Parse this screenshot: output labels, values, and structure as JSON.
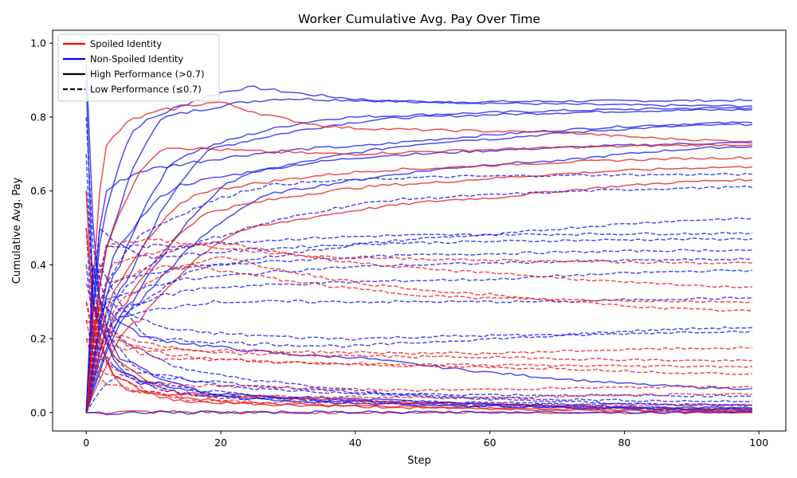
{
  "chart_data": {
    "type": "line",
    "title": "Worker Cumulative Avg. Pay Over Time",
    "xlabel": "Step",
    "ylabel": "Cumulative Avg. Pay",
    "xlim": [
      -5,
      104
    ],
    "ylim": [
      -0.05,
      1.035
    ],
    "xticks": [
      0,
      20,
      40,
      60,
      80,
      100
    ],
    "yticks": [
      0.0,
      0.2,
      0.4,
      0.6,
      0.8,
      1.0
    ],
    "grid": false,
    "legend": {
      "placement": "top-left",
      "entries": [
        {
          "label": "Spoiled Identity",
          "color": "#ff0000",
          "style": "solid"
        },
        {
          "label": "Non-Spoiled Identity",
          "color": "#0000ff",
          "style": "solid"
        },
        {
          "label": "High Performance (>0.7)",
          "color": "#000000",
          "style": "solid"
        },
        {
          "label": "Low Performance (≤0.7)",
          "color": "#000000",
          "style": "dashed"
        }
      ]
    },
    "colors": {
      "spoiled": "#ee1111",
      "nonspoiled": "#1111ee"
    },
    "x_end": 99,
    "series": [
      {
        "group": "nonspoiled",
        "perf": "high",
        "points": [
          [
            0,
            0
          ],
          [
            3,
            0.55
          ],
          [
            8,
            0.78
          ],
          [
            25,
            0.88
          ],
          [
            50,
            0.84
          ],
          [
            99,
            0.845
          ]
        ]
      },
      {
        "group": "nonspoiled",
        "perf": "high",
        "points": [
          [
            0,
            0
          ],
          [
            4,
            0.5
          ],
          [
            12,
            0.8
          ],
          [
            30,
            0.85
          ],
          [
            99,
            0.83
          ]
        ]
      },
      {
        "group": "nonspoiled",
        "perf": "high",
        "points": [
          [
            0,
            0
          ],
          [
            5,
            0.4
          ],
          [
            15,
            0.7
          ],
          [
            40,
            0.8
          ],
          [
            99,
            0.825
          ]
        ]
      },
      {
        "group": "nonspoiled",
        "perf": "high",
        "points": [
          [
            0,
            0
          ],
          [
            6,
            0.35
          ],
          [
            20,
            0.72
          ],
          [
            50,
            0.8
          ],
          [
            99,
            0.82
          ]
        ]
      },
      {
        "group": "nonspoiled",
        "perf": "high",
        "points": [
          [
            0,
            0
          ],
          [
            3,
            0.6
          ],
          [
            10,
            0.66
          ],
          [
            40,
            0.72
          ],
          [
            99,
            0.785
          ]
        ]
      },
      {
        "group": "nonspoiled",
        "perf": "high",
        "points": [
          [
            0,
            0
          ],
          [
            7,
            0.3
          ],
          [
            25,
            0.65
          ],
          [
            60,
            0.74
          ],
          [
            99,
            0.78
          ]
        ]
      },
      {
        "group": "nonspoiled",
        "perf": "high",
        "points": [
          [
            0,
            0
          ],
          [
            5,
            0.45
          ],
          [
            15,
            0.62
          ],
          [
            50,
            0.7
          ],
          [
            99,
            0.73
          ]
        ]
      },
      {
        "group": "nonspoiled",
        "perf": "high",
        "points": [
          [
            0,
            0
          ],
          [
            8,
            0.3
          ],
          [
            30,
            0.6
          ],
          [
            70,
            0.68
          ],
          [
            99,
            0.72
          ]
        ]
      },
      {
        "group": "nonspoiled",
        "perf": "high",
        "points": [
          [
            0,
            0.95
          ],
          [
            2,
            0.3
          ],
          [
            10,
            0.2
          ],
          [
            40,
            0.15
          ],
          [
            99,
            0.065
          ]
        ]
      },
      {
        "group": "spoiled",
        "perf": "high",
        "points": [
          [
            0,
            0
          ],
          [
            3,
            0.72
          ],
          [
            8,
            0.8
          ],
          [
            20,
            0.84
          ],
          [
            40,
            0.77
          ],
          [
            70,
            0.76
          ],
          [
            99,
            0.735
          ]
        ]
      },
      {
        "group": "spoiled",
        "perf": "high",
        "points": [
          [
            0,
            0
          ],
          [
            4,
            0.5
          ],
          [
            12,
            0.72
          ],
          [
            40,
            0.7
          ],
          [
            99,
            0.725
          ]
        ]
      },
      {
        "group": "spoiled",
        "perf": "high",
        "points": [
          [
            0,
            0
          ],
          [
            5,
            0.35
          ],
          [
            18,
            0.6
          ],
          [
            50,
            0.66
          ],
          [
            99,
            0.69
          ]
        ]
      },
      {
        "group": "spoiled",
        "perf": "high",
        "points": [
          [
            0,
            0
          ],
          [
            6,
            0.3
          ],
          [
            20,
            0.55
          ],
          [
            50,
            0.62
          ],
          [
            99,
            0.665
          ]
        ]
      },
      {
        "group": "spoiled",
        "perf": "high",
        "points": [
          [
            0,
            0
          ],
          [
            8,
            0.25
          ],
          [
            25,
            0.5
          ],
          [
            60,
            0.58
          ],
          [
            99,
            0.63
          ]
        ]
      },
      {
        "group": "nonspoiled",
        "perf": "low",
        "points": [
          [
            0,
            0
          ],
          [
            3,
            0.35
          ],
          [
            10,
            0.5
          ],
          [
            30,
            0.62
          ],
          [
            60,
            0.64
          ],
          [
            99,
            0.645
          ]
        ]
      },
      {
        "group": "nonspoiled",
        "perf": "low",
        "points": [
          [
            0,
            0
          ],
          [
            4,
            0.3
          ],
          [
            15,
            0.45
          ],
          [
            50,
            0.58
          ],
          [
            99,
            0.61
          ]
        ]
      },
      {
        "group": "nonspoiled",
        "perf": "low",
        "points": [
          [
            0,
            0
          ],
          [
            5,
            0.25
          ],
          [
            20,
            0.4
          ],
          [
            60,
            0.48
          ],
          [
            99,
            0.525
          ]
        ]
      },
      {
        "group": "nonspoiled",
        "perf": "low",
        "points": [
          [
            0,
            0
          ],
          [
            3,
            0.45
          ],
          [
            12,
            0.45
          ],
          [
            50,
            0.48
          ],
          [
            99,
            0.485
          ]
        ]
      },
      {
        "group": "nonspoiled",
        "perf": "low",
        "points": [
          [
            0,
            0
          ],
          [
            2,
            0.5
          ],
          [
            10,
            0.42
          ],
          [
            50,
            0.46
          ],
          [
            99,
            0.47
          ]
        ]
      },
      {
        "group": "nonspoiled",
        "perf": "low",
        "points": [
          [
            0,
            0
          ],
          [
            4,
            0.35
          ],
          [
            20,
            0.4
          ],
          [
            60,
            0.43
          ],
          [
            99,
            0.44
          ]
        ]
      },
      {
        "group": "nonspoiled",
        "perf": "low",
        "points": [
          [
            0,
            0
          ],
          [
            3,
            0.3
          ],
          [
            15,
            0.36
          ],
          [
            50,
            0.4
          ],
          [
            99,
            0.415
          ]
        ]
      },
      {
        "group": "nonspoiled",
        "perf": "low",
        "points": [
          [
            0,
            0
          ],
          [
            5,
            0.28
          ],
          [
            20,
            0.34
          ],
          [
            60,
            0.36
          ],
          [
            99,
            0.385
          ]
        ]
      },
      {
        "group": "nonspoiled",
        "perf": "low",
        "points": [
          [
            0,
            0
          ],
          [
            4,
            0.25
          ],
          [
            20,
            0.3
          ],
          [
            70,
            0.3
          ],
          [
            99,
            0.31
          ]
        ]
      },
      {
        "group": "nonspoiled",
        "perf": "low",
        "points": [
          [
            0,
            0
          ],
          [
            3,
            0.3
          ],
          [
            15,
            0.22
          ],
          [
            40,
            0.2
          ],
          [
            70,
            0.21
          ],
          [
            99,
            0.23
          ]
        ]
      },
      {
        "group": "nonspoiled",
        "perf": "low",
        "points": [
          [
            0,
            0
          ],
          [
            2,
            0.4
          ],
          [
            10,
            0.2
          ],
          [
            40,
            0.18
          ],
          [
            99,
            0.22
          ]
        ]
      },
      {
        "group": "nonspoiled",
        "perf": "low",
        "points": [
          [
            0,
            0.8
          ],
          [
            1,
            0.45
          ],
          [
            5,
            0.2
          ],
          [
            20,
            0.1
          ],
          [
            60,
            0.04
          ],
          [
            99,
            0.03
          ]
        ]
      },
      {
        "group": "nonspoiled",
        "perf": "low",
        "points": [
          [
            0,
            0.7
          ],
          [
            1,
            0.3
          ],
          [
            6,
            0.12
          ],
          [
            30,
            0.06
          ],
          [
            99,
            0.02
          ]
        ]
      },
      {
        "group": "nonspoiled",
        "perf": "low",
        "points": [
          [
            0,
            0.5
          ],
          [
            1,
            0.2
          ],
          [
            8,
            0.08
          ],
          [
            40,
            0.03
          ],
          [
            99,
            0.01
          ]
        ]
      },
      {
        "group": "nonspoiled",
        "perf": "low",
        "points": [
          [
            0,
            0.6
          ],
          [
            2,
            0.25
          ],
          [
            10,
            0.1
          ],
          [
            50,
            0.05
          ],
          [
            99,
            0.045
          ]
        ]
      },
      {
        "group": "nonspoiled",
        "perf": "low",
        "points": [
          [
            0,
            0.4
          ],
          [
            2,
            0.15
          ],
          [
            15,
            0.05
          ],
          [
            99,
            0.005
          ]
        ]
      },
      {
        "group": "nonspoiled",
        "perf": "low",
        "points": [
          [
            0,
            0
          ],
          [
            5,
            0.1
          ],
          [
            20,
            0.04
          ],
          [
            99,
            0.02
          ]
        ]
      },
      {
        "group": "spoiled",
        "perf": "low",
        "points": [
          [
            0,
            0
          ],
          [
            3,
            0.45
          ],
          [
            10,
            0.47
          ],
          [
            40,
            0.42
          ],
          [
            99,
            0.405
          ]
        ]
      },
      {
        "group": "spoiled",
        "perf": "low",
        "points": [
          [
            0,
            0
          ],
          [
            4,
            0.4
          ],
          [
            20,
            0.46
          ],
          [
            60,
            0.38
          ],
          [
            99,
            0.34
          ]
        ]
      },
      {
        "group": "spoiled",
        "perf": "low",
        "points": [
          [
            0,
            0
          ],
          [
            3,
            0.35
          ],
          [
            15,
            0.4
          ],
          [
            60,
            0.31
          ],
          [
            99,
            0.3
          ]
        ]
      },
      {
        "group": "spoiled",
        "perf": "low",
        "points": [
          [
            0,
            0
          ],
          [
            5,
            0.3
          ],
          [
            20,
            0.42
          ],
          [
            60,
            0.32
          ],
          [
            99,
            0.275
          ]
        ]
      },
      {
        "group": "spoiled",
        "perf": "low",
        "points": [
          [
            0,
            0.3
          ],
          [
            2,
            0.2
          ],
          [
            15,
            0.17
          ],
          [
            60,
            0.16
          ],
          [
            99,
            0.175
          ]
        ]
      },
      {
        "group": "spoiled",
        "perf": "low",
        "points": [
          [
            0,
            0.25
          ],
          [
            3,
            0.22
          ],
          [
            20,
            0.16
          ],
          [
            60,
            0.15
          ],
          [
            99,
            0.14
          ]
        ]
      },
      {
        "group": "spoiled",
        "perf": "low",
        "points": [
          [
            0,
            0.2
          ],
          [
            4,
            0.18
          ],
          [
            25,
            0.14
          ],
          [
            70,
            0.12
          ],
          [
            99,
            0.105
          ]
        ]
      },
      {
        "group": "spoiled",
        "perf": "low",
        "points": [
          [
            0,
            0.35
          ],
          [
            2,
            0.25
          ],
          [
            10,
            0.15
          ],
          [
            50,
            0.13
          ],
          [
            99,
            0.125
          ]
        ]
      },
      {
        "group": "spoiled",
        "perf": "low",
        "points": [
          [
            0,
            0.3
          ],
          [
            2,
            0.15
          ],
          [
            10,
            0.08
          ],
          [
            50,
            0.06
          ],
          [
            99,
            0.07
          ]
        ]
      },
      {
        "group": "spoiled",
        "perf": "low",
        "points": [
          [
            0,
            0.25
          ],
          [
            2,
            0.12
          ],
          [
            12,
            0.05
          ],
          [
            60,
            0.04
          ],
          [
            99,
            0.05
          ]
        ]
      },
      {
        "group": "spoiled",
        "perf": "low",
        "points": [
          [
            0,
            0.2
          ],
          [
            3,
            0.08
          ],
          [
            20,
            0.03
          ],
          [
            99,
            0.02
          ]
        ]
      },
      {
        "group": "spoiled",
        "perf": "high",
        "points": [
          [
            0,
            0.5
          ],
          [
            1,
            0.3
          ],
          [
            4,
            0.1
          ],
          [
            15,
            0.03
          ],
          [
            99,
            0.005
          ]
        ]
      },
      {
        "group": "spoiled",
        "perf": "high",
        "points": [
          [
            0,
            0
          ],
          [
            2,
            0.3
          ],
          [
            4,
            0.15
          ],
          [
            15,
            0.05
          ],
          [
            99,
            0.01
          ]
        ]
      },
      {
        "group": "spoiled",
        "perf": "high",
        "points": [
          [
            0,
            0.6
          ],
          [
            1,
            0.25
          ],
          [
            6,
            0.06
          ],
          [
            30,
            0.02
          ],
          [
            99,
            0.003
          ]
        ]
      },
      {
        "group": "nonspoiled",
        "perf": "high",
        "points": [
          [
            0,
            0
          ],
          [
            1,
            0.4
          ],
          [
            5,
            0.15
          ],
          [
            20,
            0.05
          ],
          [
            99,
            0.012
          ]
        ]
      },
      {
        "group": "nonspoiled",
        "perf": "high",
        "points": [
          [
            0,
            0.9
          ],
          [
            1,
            0.3
          ],
          [
            6,
            0.1
          ],
          [
            30,
            0.03
          ],
          [
            99,
            0.008
          ]
        ]
      },
      {
        "group": "spoiled",
        "perf": "high",
        "points": [
          [
            0,
            0
          ],
          [
            99,
            0.0
          ]
        ]
      },
      {
        "group": "nonspoiled",
        "perf": "high",
        "points": [
          [
            0,
            0
          ],
          [
            1,
            0.0
          ],
          [
            99,
            0.001
          ]
        ]
      }
    ]
  }
}
